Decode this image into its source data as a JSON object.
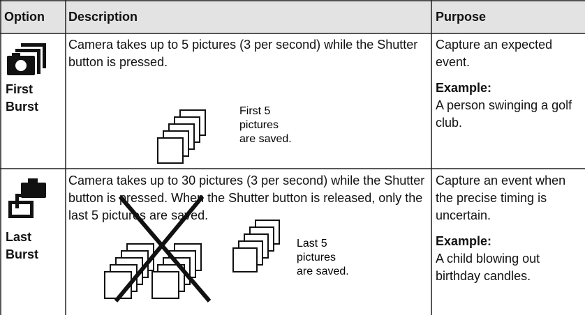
{
  "table": {
    "headers": [
      "Option",
      "Description",
      "Purpose"
    ],
    "rows": [
      {
        "option": "First Burst",
        "description": "Camera takes up to 5 pictures (3 per second) while the Shutter button is pressed.",
        "diagram_label": [
          "First 5",
          "pictures",
          "are saved."
        ],
        "purpose": "Capture an expected event.",
        "example_title": "Example:",
        "example_text": "A person swinging a golf club."
      },
      {
        "option": "Last Burst",
        "description": "Camera takes up to 30 pictures (3 per second) while the Shutter button is pressed. When the Shutter button is released, only the last 5 pictures are saved.",
        "diagram_label": [
          "Last 5",
          "pictures",
          "are saved."
        ],
        "purpose": "Capture an event when the precise timing is uncertain.",
        "example_title": "Example:",
        "example_text": "A child blowing out birthday candles."
      }
    ]
  }
}
